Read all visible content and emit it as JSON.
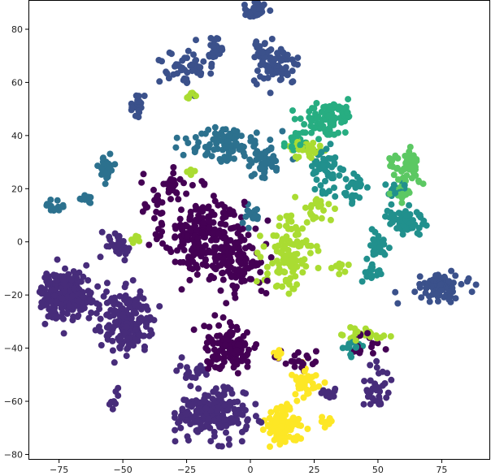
{
  "chart_data": {
    "type": "scatter",
    "title": "",
    "xlabel": "",
    "ylabel": "",
    "xlim": [
      -87,
      94
    ],
    "ylim": [
      -82,
      91
    ],
    "xticks": [
      -75,
      -50,
      -25,
      0,
      25,
      50,
      75
    ],
    "yticks": [
      -80,
      -60,
      -40,
      -20,
      0,
      20,
      40,
      60,
      80
    ],
    "xtick_labels": [
      "−75",
      "−50",
      "−25",
      "0",
      "25",
      "50",
      "75"
    ],
    "ytick_labels": [
      "−80",
      "−60",
      "−40",
      "−20",
      "0",
      "20",
      "40",
      "60",
      "80"
    ],
    "grid": false,
    "legend": "none",
    "palette": [
      "#440154",
      "#472c7a",
      "#3b518b",
      "#2c718e",
      "#21908d",
      "#27ad81",
      "#5cc863",
      "#aadc32",
      "#fde725"
    ],
    "clusters": [
      {
        "class": 0,
        "cx": -18,
        "cy": 2,
        "rx": 14,
        "ry": 14,
        "n": 240
      },
      {
        "class": 0,
        "cx": -3,
        "cy": -8,
        "rx": 8,
        "ry": 12,
        "n": 90
      },
      {
        "class": 0,
        "cx": -8,
        "cy": -40,
        "rx": 10,
        "ry": 8,
        "n": 110
      },
      {
        "class": 0,
        "cx": -30,
        "cy": 22,
        "rx": 8,
        "ry": 6,
        "n": 25
      },
      {
        "class": 0,
        "cx": -38,
        "cy": 15,
        "rx": 6,
        "ry": 6,
        "n": 15
      },
      {
        "class": 0,
        "cx": 20,
        "cy": -45,
        "rx": 8,
        "ry": 4,
        "n": 20
      },
      {
        "class": 0,
        "cx": 45,
        "cy": -38,
        "rx": 5,
        "ry": 5,
        "n": 15
      },
      {
        "class": 1,
        "cx": -72,
        "cy": -20,
        "rx": 10,
        "ry": 8,
        "n": 220
      },
      {
        "class": 1,
        "cx": -48,
        "cy": -30,
        "rx": 10,
        "ry": 10,
        "n": 180
      },
      {
        "class": 1,
        "cx": -15,
        "cy": -65,
        "rx": 12,
        "ry": 8,
        "n": 220
      },
      {
        "class": 1,
        "cx": -23,
        "cy": -48,
        "rx": 5,
        "ry": 4,
        "n": 20
      },
      {
        "class": 1,
        "cx": -52,
        "cy": -1,
        "rx": 5,
        "ry": 5,
        "n": 30
      },
      {
        "class": 1,
        "cx": -53,
        "cy": -59,
        "rx": 2,
        "ry": 3,
        "n": 8
      },
      {
        "class": 1,
        "cx": 50,
        "cy": -55,
        "rx": 5,
        "ry": 7,
        "n": 35
      },
      {
        "class": 1,
        "cx": 30,
        "cy": -57,
        "rx": 4,
        "ry": 3,
        "n": 10
      },
      {
        "class": 2,
        "cx": 2,
        "cy": 87,
        "rx": 4,
        "ry": 2.5,
        "n": 35
      },
      {
        "class": 2,
        "cx": 10,
        "cy": 66,
        "rx": 8,
        "ry": 6,
        "n": 80
      },
      {
        "class": 2,
        "cx": -25,
        "cy": 65,
        "rx": 10,
        "ry": 6,
        "n": 50
      },
      {
        "class": 2,
        "cx": -14,
        "cy": 73,
        "rx": 4,
        "ry": 4,
        "n": 20
      },
      {
        "class": 2,
        "cx": 4,
        "cy": 73,
        "rx": 3,
        "ry": 3,
        "n": 15
      },
      {
        "class": 2,
        "cx": -44,
        "cy": 52,
        "rx": 3,
        "ry": 4,
        "n": 20
      },
      {
        "class": 2,
        "cx": 75,
        "cy": -17,
        "rx": 8,
        "ry": 4,
        "n": 80
      },
      {
        "class": 3,
        "cx": -10,
        "cy": 37,
        "rx": 13,
        "ry": 6,
        "n": 90
      },
      {
        "class": 3,
        "cx": 5,
        "cy": 30,
        "rx": 8,
        "ry": 6,
        "n": 45
      },
      {
        "class": 3,
        "cx": -57,
        "cy": 28,
        "rx": 3,
        "ry": 5,
        "n": 25
      },
      {
        "class": 3,
        "cx": -77,
        "cy": 13,
        "rx": 4,
        "ry": 2,
        "n": 15
      },
      {
        "class": 3,
        "cx": -64,
        "cy": 16,
        "rx": 3,
        "ry": 2,
        "n": 10
      },
      {
        "class": 3,
        "cx": 0,
        "cy": 10,
        "rx": 4,
        "ry": 4,
        "n": 15
      },
      {
        "class": 4,
        "cx": 60,
        "cy": 8,
        "rx": 7,
        "ry": 6,
        "n": 70
      },
      {
        "class": 4,
        "cx": 50,
        "cy": -2,
        "rx": 4,
        "ry": 5,
        "n": 25
      },
      {
        "class": 4,
        "cx": 30,
        "cy": 25,
        "rx": 6,
        "ry": 10,
        "n": 50
      },
      {
        "class": 4,
        "cx": 40,
        "cy": 20,
        "rx": 6,
        "ry": 6,
        "n": 25
      },
      {
        "class": 4,
        "cx": 58,
        "cy": 20,
        "rx": 4,
        "ry": 4,
        "n": 15
      },
      {
        "class": 4,
        "cx": 48,
        "cy": -12,
        "rx": 4,
        "ry": 3,
        "n": 15
      },
      {
        "class": 4,
        "cx": 40,
        "cy": -40,
        "rx": 5,
        "ry": 3,
        "n": 15
      },
      {
        "class": 5,
        "cx": 27,
        "cy": 45,
        "rx": 7,
        "ry": 6,
        "n": 60
      },
      {
        "class": 5,
        "cx": 35,
        "cy": 48,
        "rx": 6,
        "ry": 4,
        "n": 25
      },
      {
        "class": 5,
        "cx": 16,
        "cy": 38,
        "rx": 5,
        "ry": 4,
        "n": 20
      },
      {
        "class": 6,
        "cx": 63,
        "cy": 28,
        "rx": 4,
        "ry": 5,
        "n": 45
      },
      {
        "class": 6,
        "cx": 59,
        "cy": 18,
        "rx": 3,
        "ry": 3,
        "n": 15
      },
      {
        "class": 6,
        "cx": 56,
        "cy": 30,
        "rx": 2,
        "ry": 3,
        "n": 8
      },
      {
        "class": 7,
        "cx": 15,
        "cy": -5,
        "rx": 9,
        "ry": 14,
        "n": 110
      },
      {
        "class": 7,
        "cx": 22,
        "cy": 35,
        "rx": 8,
        "ry": 3,
        "n": 40
      },
      {
        "class": 7,
        "cx": 28,
        "cy": 12,
        "rx": 5,
        "ry": 6,
        "n": 20
      },
      {
        "class": 7,
        "cx": 45,
        "cy": -35,
        "rx": 8,
        "ry": 2,
        "n": 25
      },
      {
        "class": 7,
        "cx": -23,
        "cy": 55,
        "rx": 2,
        "ry": 2,
        "n": 8
      },
      {
        "class": 7,
        "cx": -44,
        "cy": 2,
        "rx": 2,
        "ry": 2,
        "n": 6
      },
      {
        "class": 7,
        "cx": -24,
        "cy": 27,
        "rx": 2,
        "ry": 2,
        "n": 6
      },
      {
        "class": 7,
        "cx": 36,
        "cy": -10,
        "rx": 3,
        "ry": 2,
        "n": 10
      },
      {
        "class": 8,
        "cx": 12,
        "cy": -69,
        "rx": 6,
        "ry": 6,
        "n": 110
      },
      {
        "class": 8,
        "cx": 22,
        "cy": -52,
        "rx": 5,
        "ry": 5,
        "n": 35
      },
      {
        "class": 8,
        "cx": 11,
        "cy": -42,
        "rx": 2,
        "ry": 2,
        "n": 10
      },
      {
        "class": 8,
        "cx": 30,
        "cy": -68,
        "rx": 2,
        "ry": 2,
        "n": 10
      }
    ]
  }
}
